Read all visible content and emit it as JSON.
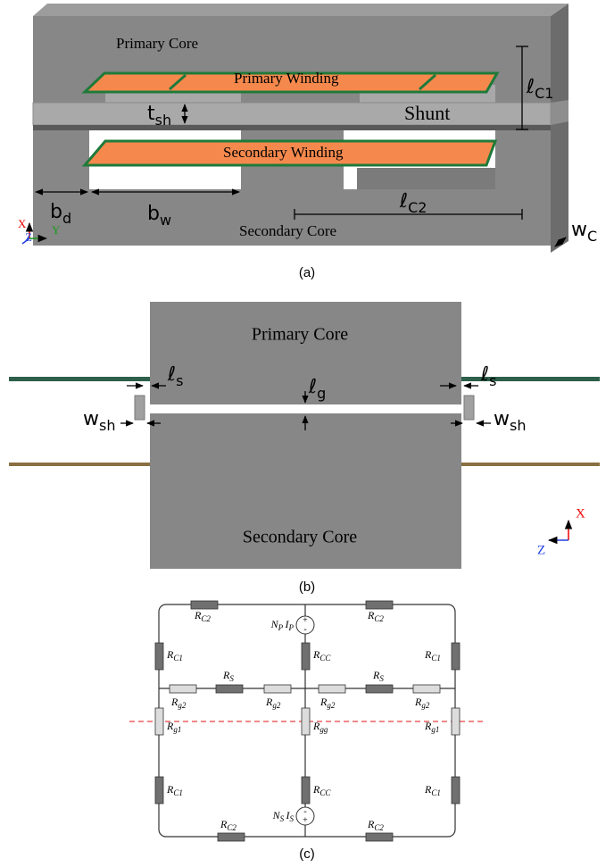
{
  "a": {
    "caption": "(a)",
    "labels": {
      "primary_core": "Primary Core",
      "primary_winding": "Primary Winding",
      "shunt": "Shunt",
      "secondary_winding": "Secondary Winding",
      "secondary_core": "Secondary Core"
    },
    "symbols": {
      "l_c1": {
        "base": "ℓ",
        "sub": "C1"
      },
      "t_sh": {
        "base": "t",
        "sub": "sh"
      },
      "b_d": {
        "base": "b",
        "sub": "d"
      },
      "b_w": {
        "base": "b",
        "sub": "w"
      },
      "l_c2": {
        "base": "ℓ",
        "sub": "C2"
      },
      "w_c": {
        "base": "w",
        "sub": "C"
      }
    },
    "axes": {
      "x": "X",
      "y": "Y",
      "z": "Z"
    }
  },
  "b": {
    "caption": "(b)",
    "labels": {
      "primary_core": "Primary Core",
      "secondary_core": "Secondary Core"
    },
    "symbols": {
      "l_s_left": {
        "base": "ℓ",
        "sub": "s"
      },
      "l_s_right": {
        "base": "ℓ",
        "sub": "s"
      },
      "l_g": {
        "base": "ℓ",
        "sub": "g"
      },
      "w_sh_left": {
        "base": "w",
        "sub": "sh"
      },
      "w_sh_right": {
        "base": "w",
        "sub": "sh"
      }
    },
    "axes": {
      "x": "X",
      "z": "Z"
    }
  },
  "c": {
    "caption": "(c)",
    "resistors": {
      "rc2_top_left": {
        "base": "R",
        "sub": "C2"
      },
      "rc2_top_right": {
        "base": "R",
        "sub": "C2"
      },
      "rc2_bottom_left": {
        "base": "R",
        "sub": "C2"
      },
      "rc2_bottom_right": {
        "base": "R",
        "sub": "C2"
      },
      "rc1_top_left": {
        "base": "R",
        "sub": "C1"
      },
      "rc1_top_right": {
        "base": "R",
        "sub": "C1"
      },
      "rc1_bottom_left": {
        "base": "R",
        "sub": "C1"
      },
      "rc1_bottom_right": {
        "base": "R",
        "sub": "C1"
      },
      "rcc_top": {
        "base": "R",
        "sub": "CC"
      },
      "rcc_bottom": {
        "base": "R",
        "sub": "CC"
      },
      "rs_left": {
        "base": "R",
        "sub": "S"
      },
      "rs_right": {
        "base": "R",
        "sub": "S"
      },
      "rg2_1": {
        "base": "R",
        "sub": "g2"
      },
      "rg2_2": {
        "base": "R",
        "sub": "g2"
      },
      "rg2_3": {
        "base": "R",
        "sub": "g2"
      },
      "rg2_4": {
        "base": "R",
        "sub": "g2"
      },
      "rg1_left": {
        "base": "R",
        "sub": "g1"
      },
      "rg1_right": {
        "base": "R",
        "sub": "g1"
      },
      "rgg": {
        "base": "R",
        "sub": "gg"
      }
    },
    "sources": {
      "top": [
        {
          "base": "N",
          "sub": "P"
        },
        {
          "base": "I",
          "sub": "P"
        }
      ],
      "bottom": [
        {
          "base": "N",
          "sub": "S"
        },
        {
          "base": "I",
          "sub": "S"
        }
      ]
    },
    "polarity_top": [
      "+",
      "-"
    ],
    "polarity_bottom": [
      "-",
      "+"
    ]
  }
}
